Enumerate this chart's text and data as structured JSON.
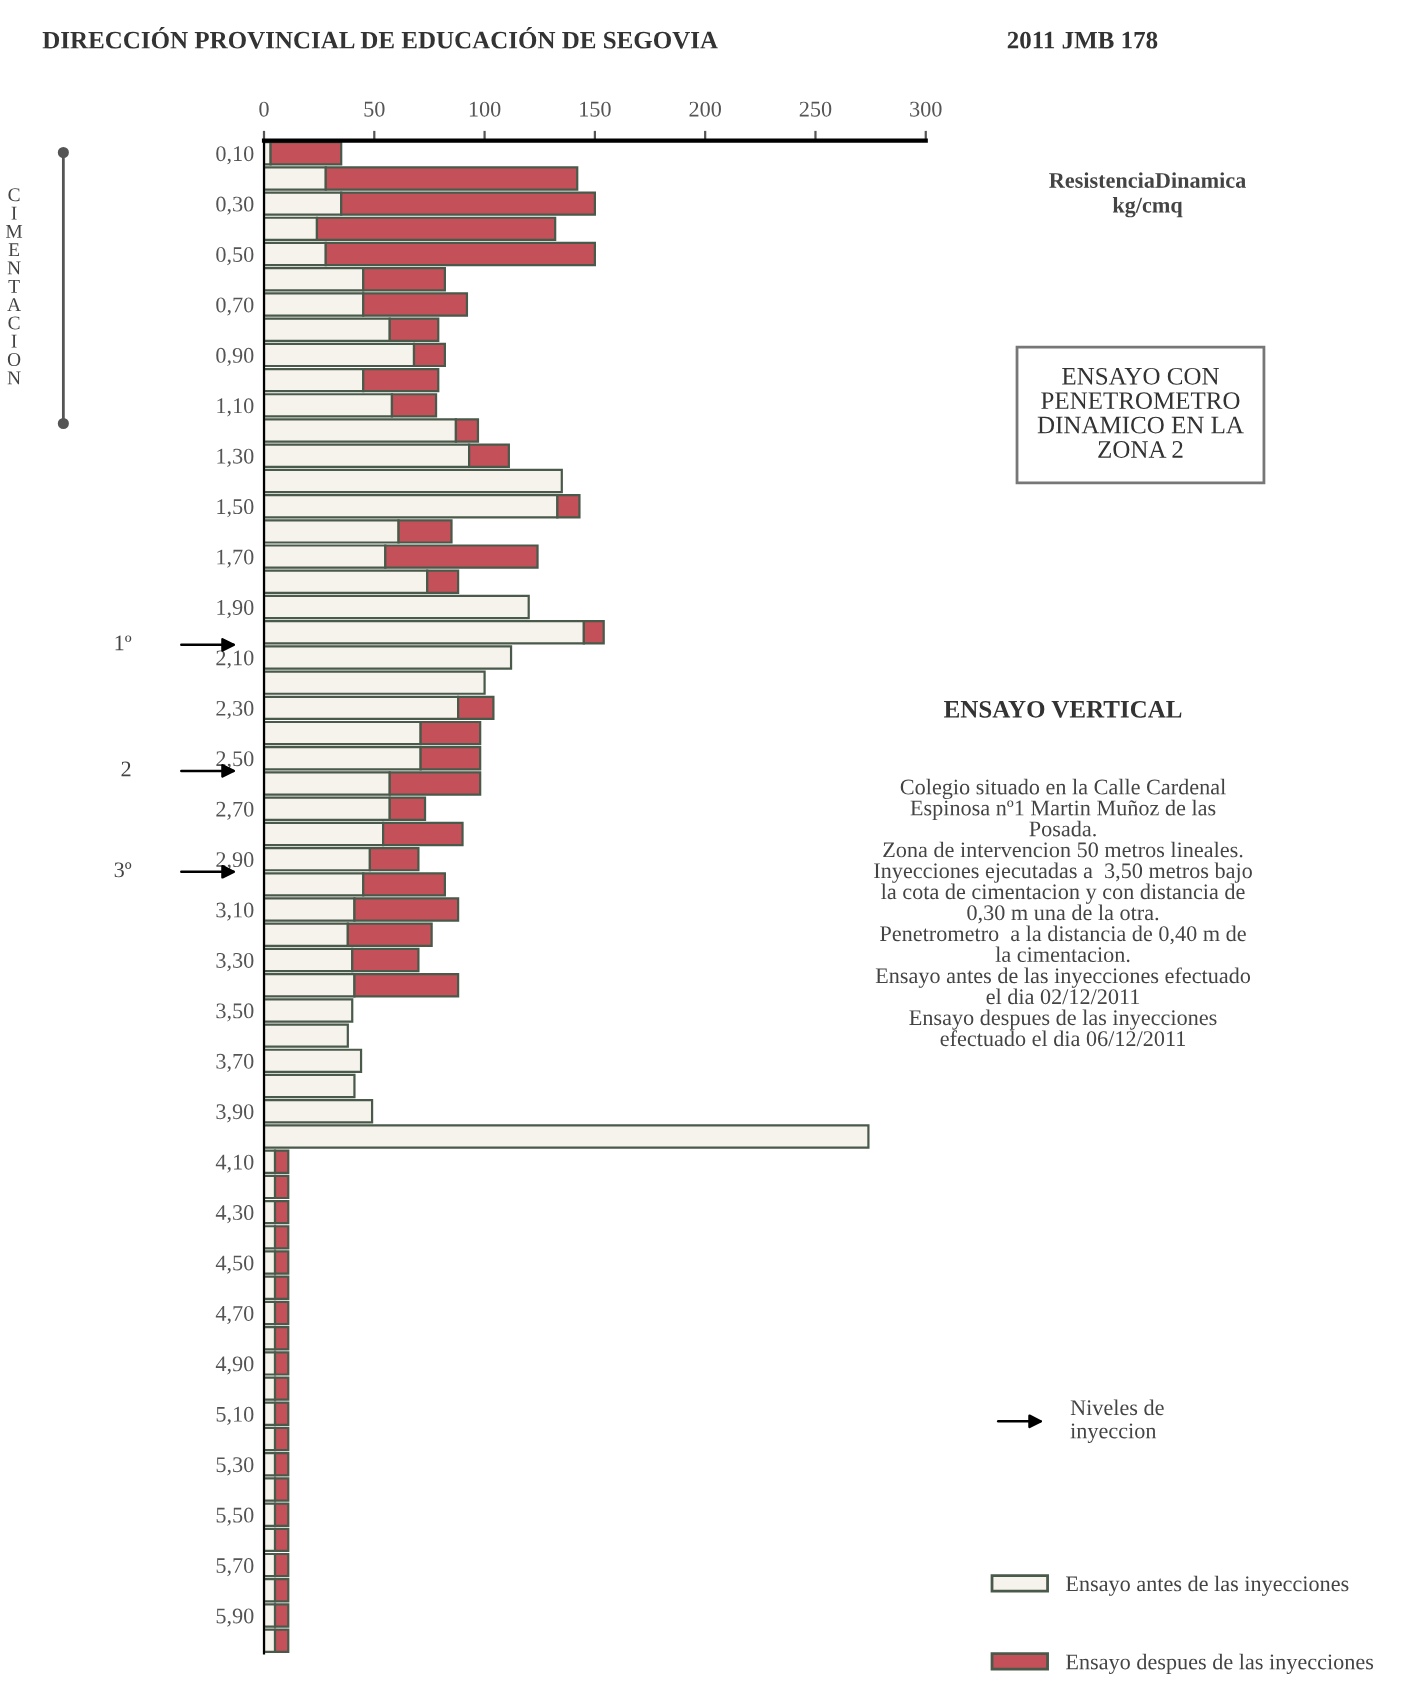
{
  "chart_data": {
    "type": "bar",
    "orientation": "horizontal",
    "stacked": true,
    "title": "DIRECCIÓN PROVINCIAL DE EDUCACIÓN DE SEGOVIA",
    "subtitle": "2011 JMB 178",
    "xlabel": "ResistenciaDinamica\nkg/cmq",
    "categories": [
      "0,10",
      null,
      "0,30",
      null,
      "0,50",
      null,
      "0,70",
      null,
      "0,90",
      null,
      "1,10",
      null,
      "1,30",
      null,
      "1,50",
      null,
      "1,70",
      null,
      "1,90",
      null,
      "2,10",
      null,
      "2,30",
      null,
      "2,50",
      null,
      "2,70",
      null,
      "2,90",
      null,
      "3,10",
      null,
      "3,30",
      null,
      "3,50",
      null,
      "3,70",
      null,
      "3,90",
      null,
      "4,10",
      null,
      "4,30",
      null,
      "4,50",
      null,
      "4,70",
      null,
      "4,90",
      null,
      "5,10",
      null,
      "5,30",
      null,
      "5,50",
      null,
      "5,70",
      null,
      "5,90",
      null
    ],
    "series": [
      {
        "name": "Ensayo antes de las inyecciones",
        "color": "#f6f3ec",
        "values": [
          3,
          28,
          35,
          24,
          28,
          45,
          45,
          57,
          68,
          45,
          58,
          87,
          93,
          135,
          133,
          61,
          55,
          74,
          120,
          145,
          112,
          100,
          88,
          71,
          71,
          57,
          57,
          54,
          48,
          45,
          41,
          38,
          40,
          41,
          40,
          38,
          44,
          41,
          49,
          274,
          5,
          5,
          5,
          5,
          5,
          5,
          5,
          5,
          5,
          5,
          5,
          5,
          5,
          5,
          5,
          5,
          5,
          5,
          5,
          5
        ]
      },
      {
        "name": "Ensayo despues de las inyecciones",
        "color": "#c4505a",
        "values": [
          32,
          114,
          115,
          108,
          122,
          37,
          47,
          22,
          14,
          34,
          20,
          10,
          18,
          null,
          10,
          24,
          69,
          14,
          null,
          9,
          null,
          null,
          16,
          27,
          27,
          41,
          16,
          36,
          22,
          37,
          47,
          38,
          30,
          47,
          null,
          null,
          null,
          null,
          null,
          null,
          6,
          6,
          6,
          6,
          6,
          6,
          6,
          6,
          6,
          6,
          6,
          6,
          6,
          6,
          6,
          6,
          6,
          6,
          6,
          6
        ]
      }
    ],
    "xlim": [
      0,
      300
    ],
    "xticks": [
      0,
      50,
      100,
      150,
      200,
      250,
      300
    ],
    "grid": false,
    "legend": "bottom right",
    "annotations": [
      "CIMENTACION",
      "1º",
      "2",
      "3º",
      "ENSAYO CON\nPENETROMETRO\nDINAMICO EN LA\nZONA 2",
      "ENSAYO VERTICAL",
      "Colegio situado en la Calle Cardenal\nEspinosa nº1 Martin Muñoz de las\nPosada.\nZona de intervencion 50 metros lineales.\nInyecciones ejecutadas a  3,50 metros bajo\nla cota de cimentacion y con distancia de\n0,30 m una de la otra.\nPenetrometro  a la distancia de 0,40 m de\nla cimentacion.\nEnsayo antes de las inyecciones efectuado\nel dia 02/12/2011\nEnsayo despues de las inyecciones\nefectuado el dia 06/12/2011",
      "Niveles de\ninyeccion"
    ]
  }
}
